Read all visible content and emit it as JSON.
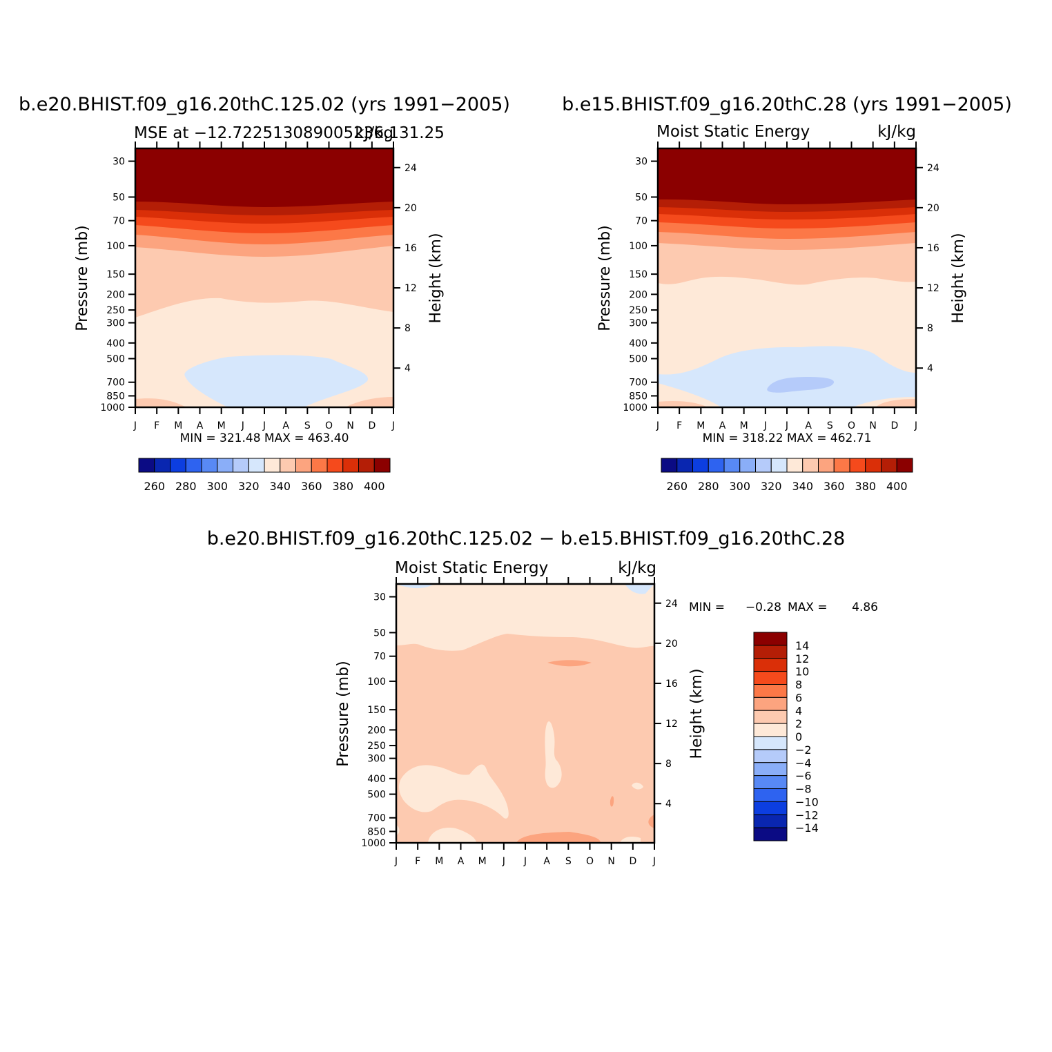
{
  "figure": {
    "title_left": "b.e20.BHIST.f09_g16.20thC.125.02 (yrs 1991−2005)",
    "title_right": "b.e15.BHIST.f09_g16.20thC.28 (yrs 1991−2005)",
    "title_bottom": "b.e20.BHIST.f09_g16.20thC.125.02 − b.e15.BHIST.f09_g16.20thC.28",
    "ylabel_left": "Pressure (mb)",
    "ylabel_right": "Height (km)"
  },
  "colors": {
    "full_palette": [
      "#0b0b84",
      "#0926b0",
      "#0c3ee0",
      "#2e63f0",
      "#5889f5",
      "#8aaef8",
      "#b5cbfa",
      "#d6e7fc",
      "#fee9d8",
      "#fdcab0",
      "#fca47f",
      "#fc7847",
      "#f54a1c",
      "#da2f08",
      "#b41e06",
      "#8b0000"
    ]
  },
  "chart_data": [
    {
      "id": "left",
      "type": "heatmap",
      "title": "b.e20.BHIST.f09_g16.20thC.125.02 (yrs 1991−2005)",
      "subtitle_left": "MSE at −12.722513089005236,131.25",
      "subtitle_right": "kJ/kg",
      "xlabel": "",
      "ylabel": "Pressure (mb)",
      "ylabel_right": "Height (km)",
      "x_ticks": [
        "J",
        "F",
        "M",
        "A",
        "M",
        "J",
        "J",
        "A",
        "S",
        "O",
        "N",
        "D",
        "J"
      ],
      "y_ticks": [
        30,
        50,
        70,
        100,
        150,
        200,
        250,
        300,
        400,
        500,
        700,
        850,
        1000
      ],
      "y_ticks_right": [
        24,
        20,
        16,
        12,
        8,
        4
      ],
      "ylim": [
        1000,
        25
      ],
      "y_scale": "log",
      "min_max_text": "MIN = 321.48 MAX = 463.40",
      "min": 321.48,
      "max": 463.4,
      "colorbar_levels": [
        260,
        270,
        280,
        290,
        300,
        310,
        320,
        330,
        340,
        350,
        360,
        370,
        380,
        390,
        400
      ],
      "colorbar_labels": [
        "260",
        "280",
        "300",
        "320",
        "340",
        "360",
        "380",
        "400"
      ],
      "contour_fills": [
        {
          "level": ">400",
          "from_p": 25,
          "to_p": 55
        },
        {
          "level": "390-400",
          "from_p": 55,
          "to_p": 62
        },
        {
          "level": "380-390",
          "from_p": 62,
          "to_p": 70
        },
        {
          "level": "370-380",
          "from_p": 70,
          "to_p": 80
        },
        {
          "level": "360-370",
          "from_p": 80,
          "to_p": 95
        },
        {
          "level": "350-360",
          "from_p": 95,
          "to_p": 120
        },
        {
          "level": "340-350",
          "from_p": 120,
          "to_p": 240
        },
        {
          "level": "330-340",
          "from_p": 240,
          "to_p": 1000
        },
        {
          "level": "320-330",
          "region": "Apr–Oct, 500–1000 mb"
        }
      ]
    },
    {
      "id": "right",
      "type": "heatmap",
      "title": "b.e15.BHIST.f09_g16.20thC.28 (yrs 1991−2005)",
      "subtitle_left": "Moist Static Energy",
      "subtitle_right": "kJ/kg",
      "xlabel": "",
      "ylabel": "Pressure (mb)",
      "ylabel_right": "Height (km)",
      "x_ticks": [
        "J",
        "F",
        "M",
        "A",
        "M",
        "J",
        "J",
        "A",
        "S",
        "O",
        "N",
        "D",
        "J"
      ],
      "y_ticks": [
        30,
        50,
        70,
        100,
        150,
        200,
        250,
        300,
        400,
        500,
        700,
        850,
        1000
      ],
      "y_ticks_right": [
        24,
        20,
        16,
        12,
        8,
        4
      ],
      "ylim": [
        1000,
        25
      ],
      "y_scale": "log",
      "min_max_text": "MIN = 318.22 MAX = 462.71",
      "min": 318.22,
      "max": 462.71,
      "colorbar_levels": [
        260,
        270,
        280,
        290,
        300,
        310,
        320,
        330,
        340,
        350,
        360,
        370,
        380,
        390,
        400
      ],
      "colorbar_labels": [
        "260",
        "280",
        "300",
        "320",
        "340",
        "360",
        "380",
        "400"
      ],
      "contour_fills": [
        {
          "level": ">400",
          "from_p": 25,
          "to_p": 53
        },
        {
          "level": "390-400",
          "from_p": 53,
          "to_p": 60
        },
        {
          "level": "380-390",
          "from_p": 60,
          "to_p": 68
        },
        {
          "level": "370-380",
          "from_p": 68,
          "to_p": 78
        },
        {
          "level": "360-370",
          "from_p": 78,
          "to_p": 92
        },
        {
          "level": "350-360",
          "from_p": 92,
          "to_p": 110
        },
        {
          "level": "340-350",
          "from_p": 110,
          "to_p": 170
        },
        {
          "level": "330-340",
          "from_p": 170,
          "to_p": 1000
        },
        {
          "level": "320-330",
          "region": "Jan–Dec, 450–1000 mb"
        },
        {
          "level": "310-320",
          "region": "Jun–Aug, 650–800 mb"
        }
      ]
    },
    {
      "id": "diff",
      "type": "heatmap",
      "title": "b.e20.BHIST.f09_g16.20thC.125.02 − b.e15.BHIST.f09_g16.20thC.28",
      "subtitle_left": "Moist Static Energy",
      "subtitle_right": "kJ/kg",
      "xlabel": "",
      "ylabel": "Pressure (mb)",
      "ylabel_right": "Height (km)",
      "x_ticks": [
        "J",
        "F",
        "M",
        "A",
        "M",
        "J",
        "J",
        "A",
        "S",
        "O",
        "N",
        "D",
        "J"
      ],
      "y_ticks": [
        30,
        50,
        70,
        100,
        150,
        200,
        250,
        300,
        400,
        500,
        700,
        850,
        1000
      ],
      "y_ticks_right": [
        24,
        20,
        16,
        12,
        8,
        4
      ],
      "ylim": [
        1000,
        25
      ],
      "y_scale": "log",
      "min_label": "MIN =",
      "min_value": "−0.28",
      "max_label": "MAX =",
      "max_value": "4.86",
      "min": -0.28,
      "max": 4.86,
      "colorbar_levels": [
        14,
        12,
        10,
        8,
        6,
        4,
        2,
        0,
        -2,
        -4,
        -6,
        -8,
        -10,
        -12,
        -14
      ],
      "colorbar_labels": [
        "14",
        "12",
        "10",
        "8",
        "6",
        "4",
        "2",
        "0",
        "−2",
        "−4",
        "−6",
        "−8",
        "−10",
        "−12",
        "−14"
      ],
      "contour_fills": [
        {
          "level": "0-2",
          "from_p": 25,
          "to_p": 65
        },
        {
          "level": "2-4",
          "from_p": 65,
          "to_p": 1000
        },
        {
          "level": "0-2",
          "region": "Jan–May, 350–650 mb"
        },
        {
          "level": "4-6",
          "region": "Aug–Sep, near 75 mb"
        }
      ]
    }
  ]
}
